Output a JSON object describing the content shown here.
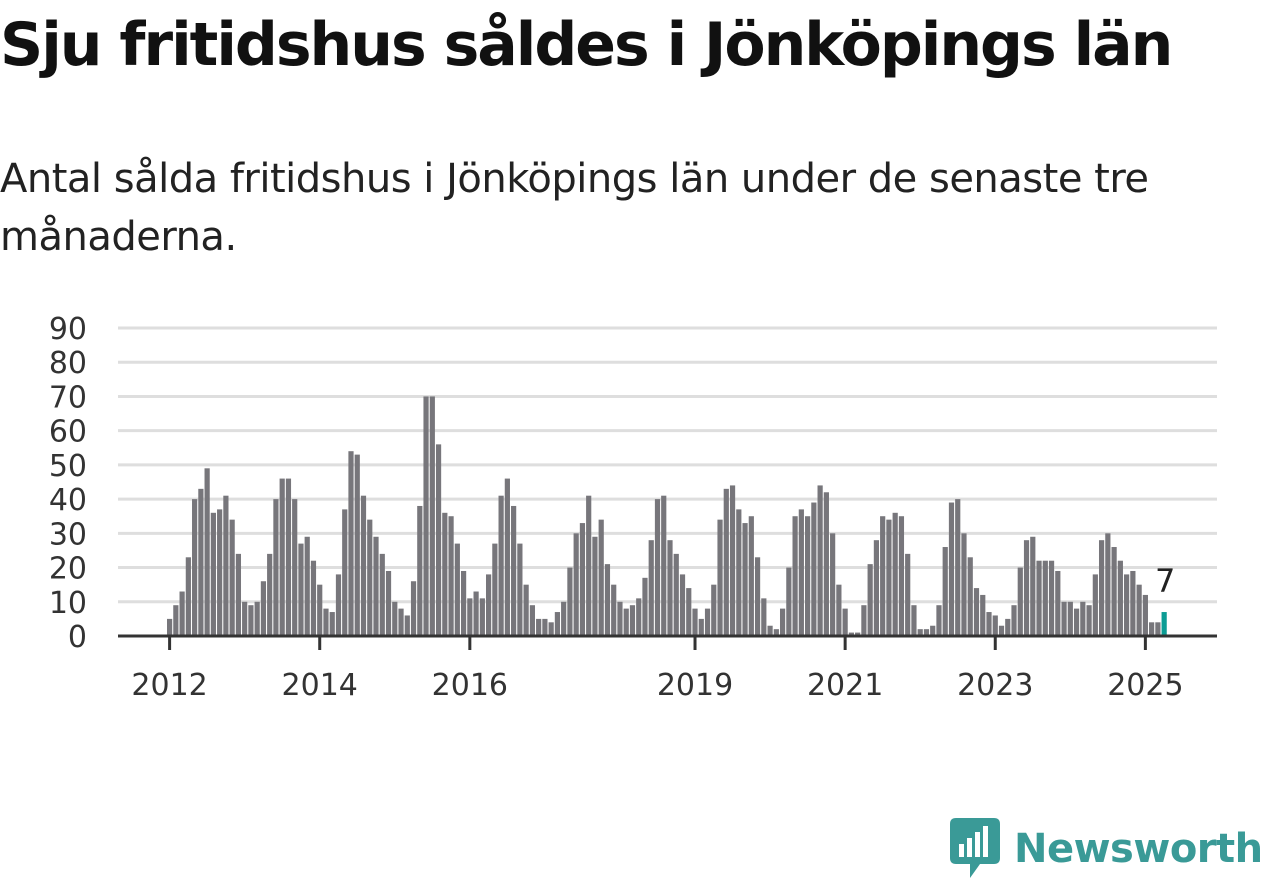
{
  "title": "Sju fritidshus såldes i Jönköpings län",
  "subtitle": "Antal sålda fritidshus i Jönköpings län under de senaste tre månaderna.",
  "brand": {
    "name": "Newsworthy",
    "color": "#3a9a97"
  },
  "colors": {
    "bar": "#77767b",
    "highlight": "#0c9c94",
    "grid": "#dedede",
    "axis": "#333333"
  },
  "chart_data": {
    "type": "bar",
    "title": "",
    "xlabel": "",
    "ylabel": "",
    "ylim": [
      0,
      90
    ],
    "yticks": [
      0,
      10,
      20,
      30,
      40,
      50,
      60,
      70,
      80,
      90
    ],
    "grid": true,
    "legend": "none",
    "start_month": "2011-01",
    "x_tick_labels": [
      {
        "label": "2012",
        "month": "2012-01"
      },
      {
        "label": "2014",
        "month": "2014-01"
      },
      {
        "label": "2016",
        "month": "2016-01"
      },
      {
        "label": "2019",
        "month": "2019-01"
      },
      {
        "label": "2021",
        "month": "2021-01"
      },
      {
        "label": "2023",
        "month": "2023-01"
      },
      {
        "label": "2025",
        "month": "2025-01"
      }
    ],
    "values": [
      0,
      0,
      0,
      0,
      0,
      0,
      0,
      0,
      0,
      0,
      0,
      0,
      5,
      9,
      13,
      23,
      40,
      43,
      49,
      36,
      37,
      41,
      34,
      24,
      10,
      9,
      10,
      16,
      24,
      40,
      46,
      46,
      40,
      27,
      29,
      22,
      15,
      8,
      7,
      18,
      37,
      54,
      53,
      41,
      34,
      29,
      24,
      19,
      10,
      8,
      6,
      16,
      38,
      70,
      70,
      56,
      36,
      35,
      27,
      19,
      11,
      13,
      11,
      18,
      27,
      41,
      46,
      38,
      27,
      15,
      9,
      5,
      5,
      4,
      7,
      10,
      20,
      30,
      33,
      41,
      29,
      34,
      21,
      15,
      10,
      8,
      9,
      11,
      17,
      28,
      40,
      41,
      28,
      24,
      18,
      14,
      8,
      5,
      8,
      15,
      34,
      43,
      44,
      37,
      33,
      35,
      23,
      11,
      3,
      2,
      8,
      20,
      35,
      37,
      35,
      39,
      44,
      42,
      30,
      15,
      8,
      1,
      1,
      9,
      21,
      28,
      35,
      34,
      36,
      35,
      24,
      9,
      2,
      2,
      3,
      9,
      26,
      39,
      40,
      30,
      23,
      14,
      12,
      7,
      6,
      3,
      5,
      9,
      20,
      28,
      29,
      22,
      22,
      22,
      19,
      10,
      10,
      8,
      10,
      9,
      18,
      28,
      30,
      26,
      22,
      18,
      19,
      15,
      12,
      4,
      4,
      7
    ],
    "highlight_index": 171,
    "annotation": {
      "index": 171,
      "text": "7"
    }
  }
}
